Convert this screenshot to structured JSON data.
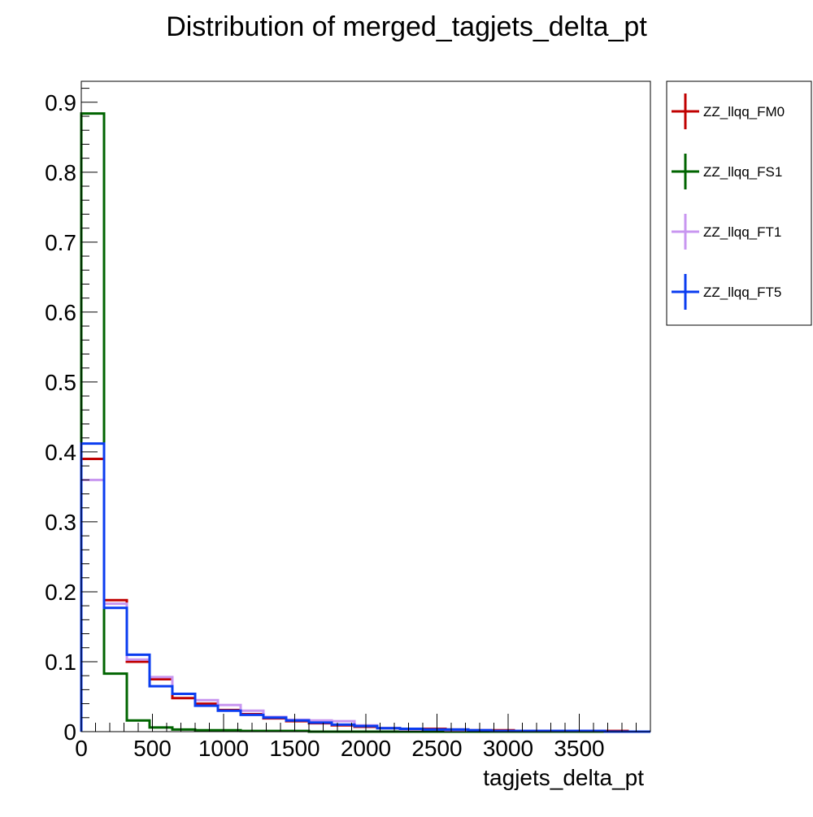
{
  "chart_data": {
    "type": "line",
    "title": "Distribution of merged_tagjets_delta_pt",
    "xlabel": "tagjets_delta_pt",
    "ylabel": "",
    "xlim": [
      0,
      4000
    ],
    "ylim": [
      0,
      0.93
    ],
    "x_ticks": [
      "0",
      "500",
      "1000",
      "1500",
      "2000",
      "2500",
      "3000",
      "3500"
    ],
    "y_ticks": [
      "0",
      "0.1",
      "0.2",
      "0.3",
      "0.4",
      "0.5",
      "0.6",
      "0.7",
      "0.8",
      "0.9"
    ],
    "bin_edges": [
      0,
      160,
      320,
      480,
      640,
      800,
      960,
      1120,
      1280,
      1440,
      1600,
      1760,
      1920,
      2080,
      2240,
      2400,
      2560,
      2720,
      2880,
      3040,
      3200,
      3360,
      3520,
      3680,
      3840,
      4000
    ],
    "grid": false,
    "legend_position": "outside-right",
    "series": [
      {
        "name": "ZZ_llqq_FM0",
        "color": "#c00000",
        "values": [
          0.39,
          0.188,
          0.1,
          0.075,
          0.048,
          0.04,
          0.031,
          0.025,
          0.019,
          0.015,
          0.012,
          0.009,
          0.007,
          0.005,
          0.004,
          0.004,
          0.003,
          0.002,
          0.002,
          0.001,
          0.001,
          0.001,
          0.001,
          0.001,
          0.0
        ]
      },
      {
        "name": "ZZ_llqq_FS1",
        "color": "#006400",
        "values": [
          0.884,
          0.083,
          0.016,
          0.006,
          0.003,
          0.002,
          0.002,
          0.001,
          0.001,
          0.001,
          0.0,
          0.0,
          0.0,
          0.0,
          0.0,
          0.0,
          0.0,
          0.0,
          0.0,
          0.0,
          0.0,
          0.0,
          0.0,
          0.0,
          0.0
        ]
      },
      {
        "name": "ZZ_llqq_FT1",
        "color": "#c896f0",
        "values": [
          0.36,
          0.183,
          0.103,
          0.078,
          0.054,
          0.045,
          0.038,
          0.03,
          0.021,
          0.017,
          0.016,
          0.015,
          0.009,
          0.005,
          0.003,
          0.003,
          0.002,
          0.002,
          0.001,
          0.001,
          0.001,
          0.001,
          0.001,
          0.0,
          0.0
        ]
      },
      {
        "name": "ZZ_llqq_FT5",
        "color": "#0a3cf0",
        "values": [
          0.412,
          0.177,
          0.11,
          0.065,
          0.054,
          0.037,
          0.03,
          0.024,
          0.02,
          0.016,
          0.013,
          0.01,
          0.008,
          0.005,
          0.004,
          0.003,
          0.003,
          0.002,
          0.001,
          0.001,
          0.001,
          0.001,
          0.001,
          0.0,
          0.0
        ]
      }
    ]
  }
}
